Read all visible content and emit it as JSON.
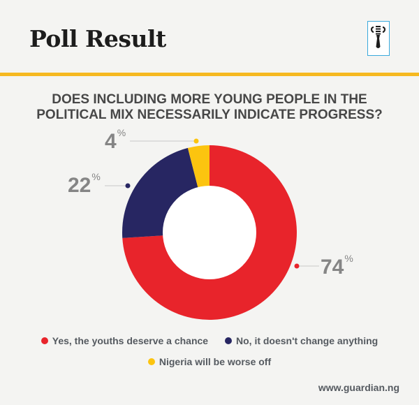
{
  "header": {
    "title": "Poll Result",
    "logo": "guardian-emblem-icon",
    "rule_color": "#f6b921"
  },
  "question": {
    "line1": "DOES INCLUDING MORE YOUNG PEOPLE IN THE",
    "line2": "POLITICAL MIX NECESSARILY INDICATE PROGRESS?"
  },
  "labels": {
    "yes": {
      "value": "74",
      "unit": "%"
    },
    "no": {
      "value": "22",
      "unit": "%"
    },
    "worse": {
      "value": "4",
      "unit": "%"
    }
  },
  "legend": [
    {
      "label": "Yes, the youths deserve a chance",
      "color": "#e8242b"
    },
    {
      "label": "No, it doesn't change anything",
      "color": "#272662"
    },
    {
      "label": "Nigeria will be worse off",
      "color": "#fcc40f"
    }
  ],
  "footer": {
    "source": "www.guardian.ng"
  },
  "chart_data": {
    "type": "pie",
    "subtype": "donut",
    "title": "DOES INCLUDING MORE YOUNG PEOPLE IN THE POLITICAL MIX NECESSARILY INDICATE PROGRESS?",
    "categories": [
      "Yes, the youths deserve a chance",
      "No, it doesn't change anything",
      "Nigeria will be worse off"
    ],
    "values": [
      74,
      22,
      4
    ],
    "unit": "%",
    "colors": [
      "#e8242b",
      "#272662",
      "#fcc40f"
    ],
    "legend_position": "bottom"
  }
}
